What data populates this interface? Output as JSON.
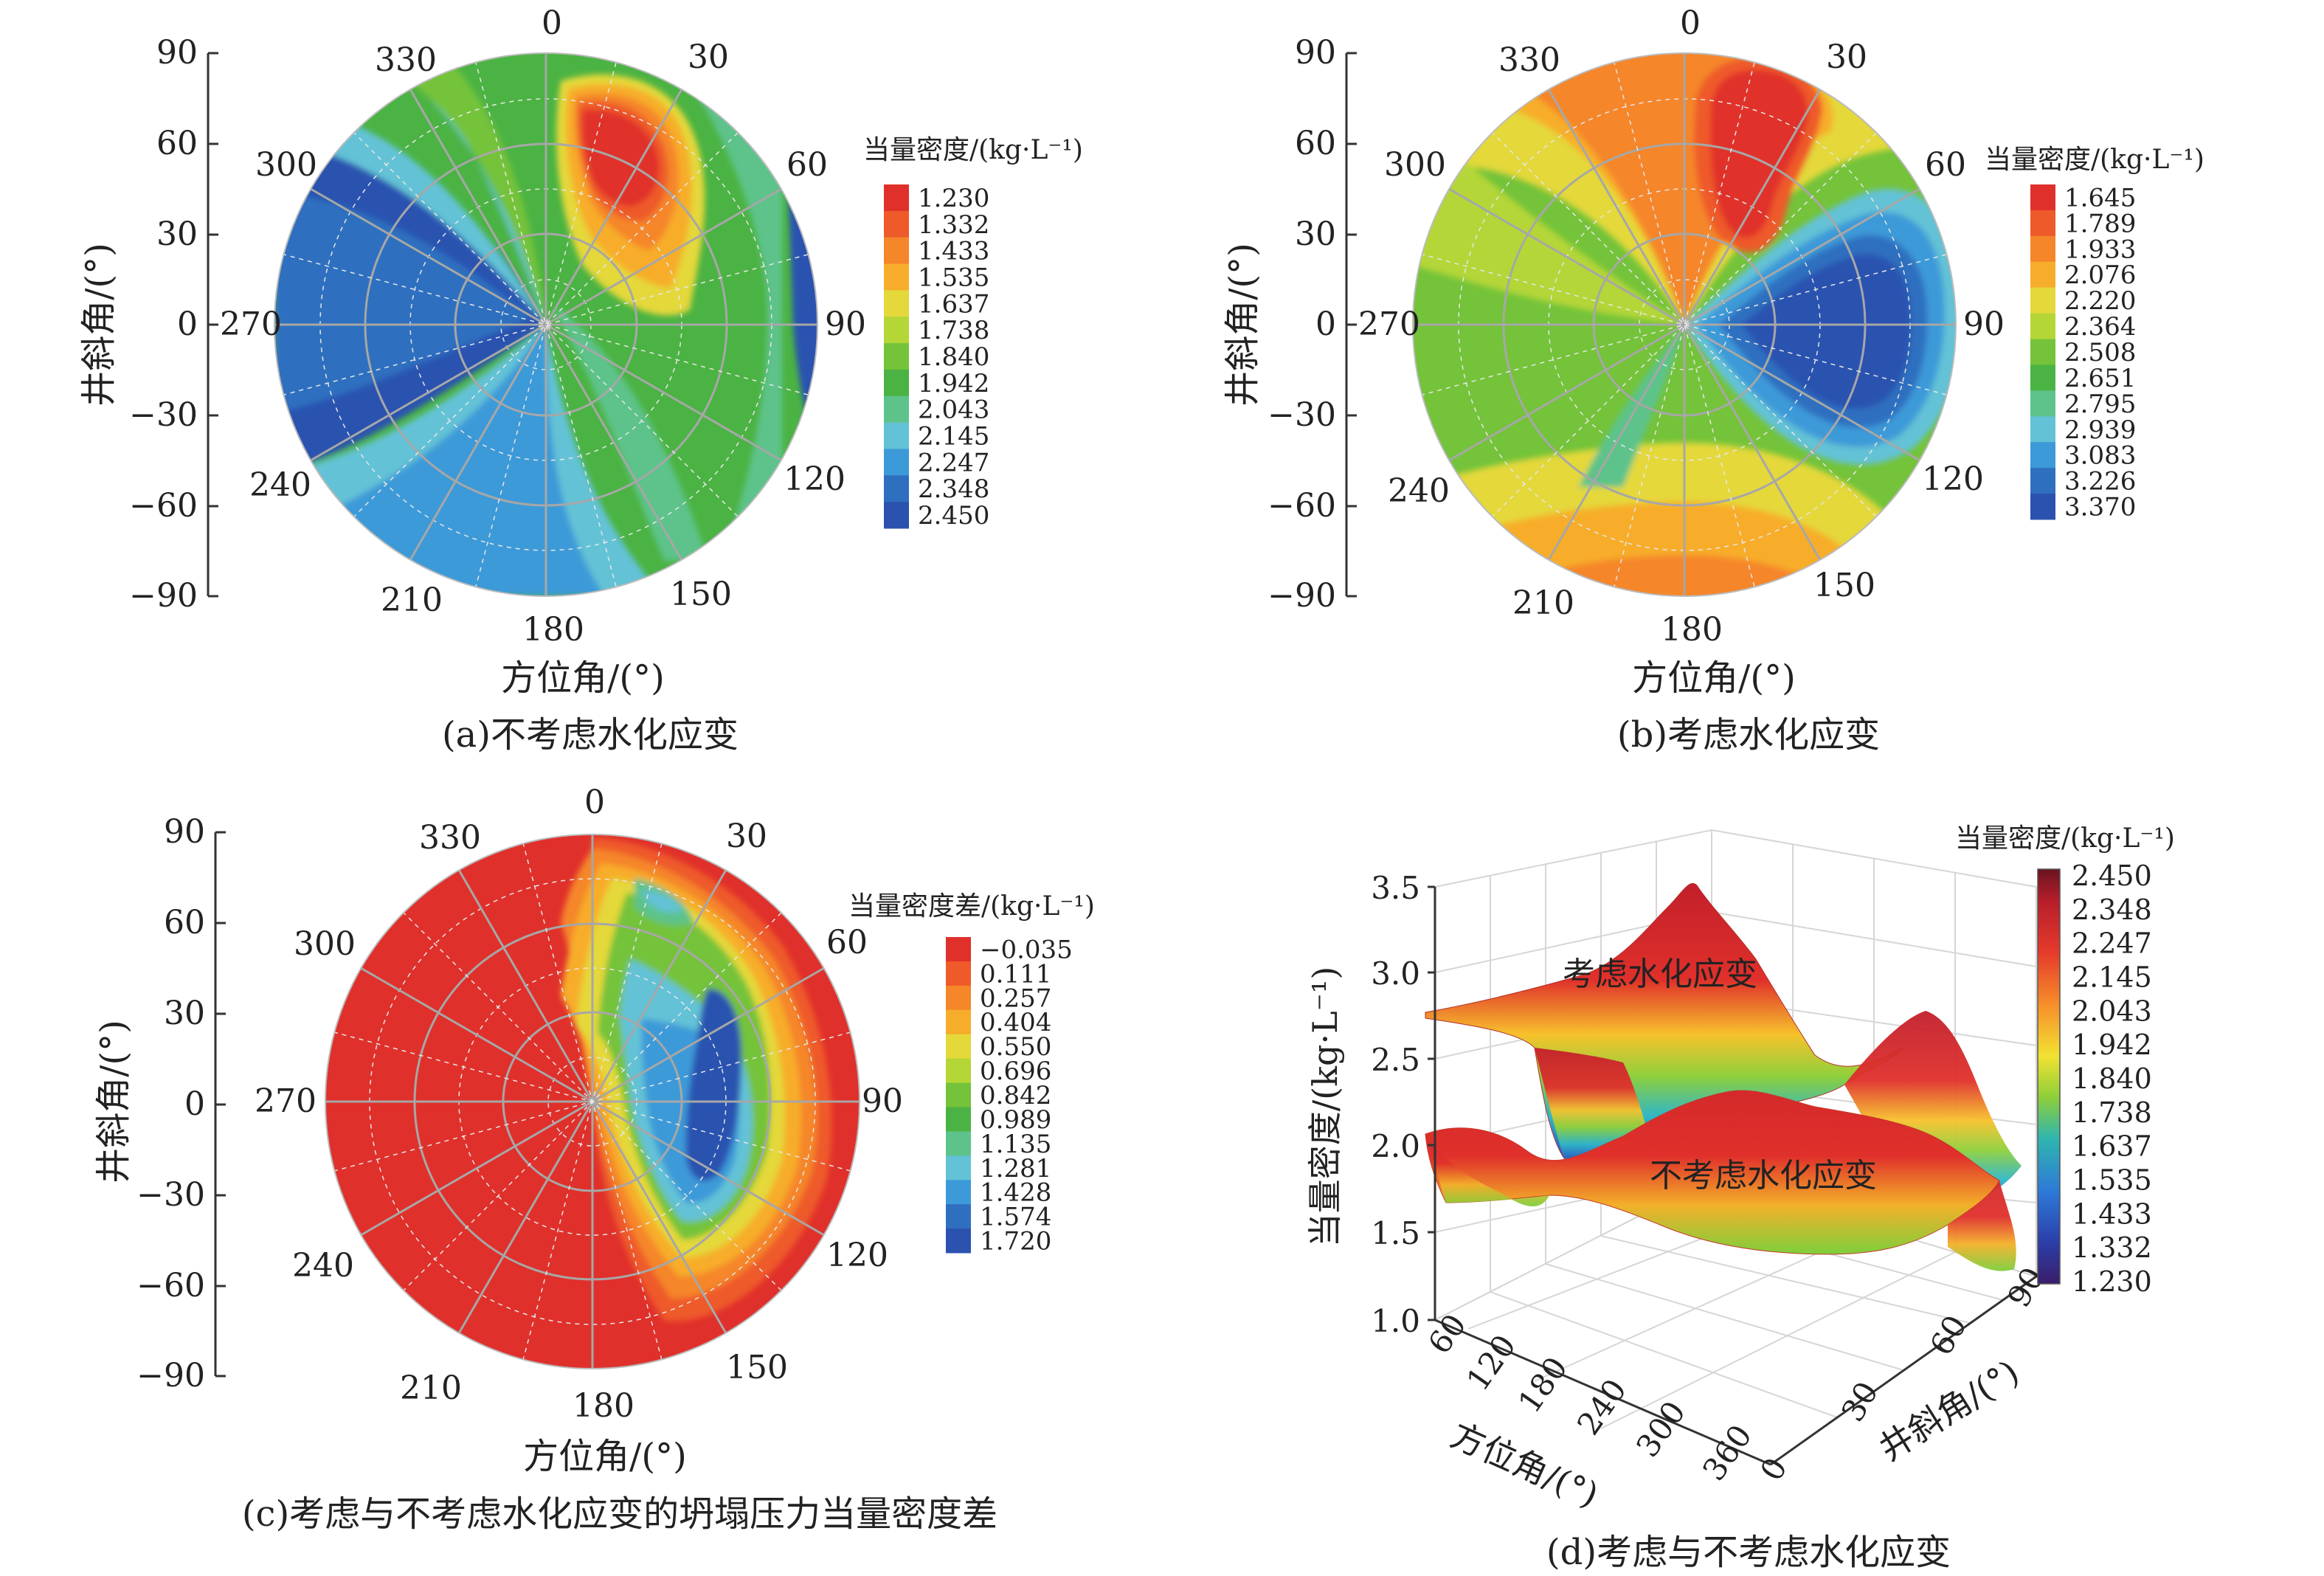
{
  "chart_data": [
    {
      "id": "a",
      "type": "polar-contour",
      "caption": "(a)不考虑水化应变",
      "xlabel": "方位角/(°)",
      "ylabel": "井斜角/(°)",
      "angle_ticks": [
        "0",
        "30",
        "60",
        "90",
        "120",
        "150",
        "180",
        "210",
        "240",
        "270",
        "300",
        "330"
      ],
      "y_ticks": [
        "90",
        "60",
        "30",
        "0",
        "−30",
        "−60",
        "−90"
      ],
      "ylim": [
        -90,
        90
      ],
      "legend_title": "当量密度/(kg·L⁻¹)",
      "legend_values": [
        "1.230",
        "1.332",
        "1.433",
        "1.535",
        "1.637",
        "1.738",
        "1.840",
        "1.942",
        "2.043",
        "2.145",
        "2.247",
        "2.348",
        "2.450"
      ],
      "legend_colors": [
        "#e0302b",
        "#ee5a2a",
        "#f5862a",
        "#f7ad2c",
        "#e4d83a",
        "#b4d637",
        "#74c33a",
        "#4bb343",
        "#5dc38a",
        "#63c2d6",
        "#3d9ad8",
        "#2f6fbf",
        "#2c52b0"
      ]
    },
    {
      "id": "b",
      "type": "polar-contour",
      "caption": "(b)考虑水化应变",
      "xlabel": "方位角/(°)",
      "ylabel": "井斜角/(°)",
      "angle_ticks": [
        "0",
        "30",
        "60",
        "90",
        "120",
        "150",
        "180",
        "210",
        "240",
        "270",
        "300",
        "330"
      ],
      "y_ticks": [
        "90",
        "60",
        "30",
        "0",
        "−30",
        "−60",
        "−90"
      ],
      "ylim": [
        -90,
        90
      ],
      "legend_title": "当量密度/(kg·L⁻¹)",
      "legend_values": [
        "1.645",
        "1.789",
        "1.933",
        "2.076",
        "2.220",
        "2.364",
        "2.508",
        "2.651",
        "2.795",
        "2.939",
        "3.083",
        "3.226",
        "3.370"
      ],
      "legend_colors": [
        "#e0302b",
        "#ee5a2a",
        "#f5862a",
        "#f7ad2c",
        "#e4d83a",
        "#b4d637",
        "#74c33a",
        "#4bb343",
        "#5dc38a",
        "#63c2d6",
        "#3d9ad8",
        "#2f6fbf",
        "#2c52b0"
      ]
    },
    {
      "id": "c",
      "type": "polar-contour",
      "caption": "(c)考虑与不考虑水化应变的坍塌压力当量密度差",
      "xlabel": "方位角/(°)",
      "ylabel": "井斜角/(°)",
      "angle_ticks": [
        "0",
        "30",
        "60",
        "90",
        "120",
        "150",
        "180",
        "210",
        "240",
        "270",
        "300",
        "330"
      ],
      "y_ticks": [
        "90",
        "60",
        "30",
        "0",
        "−30",
        "−60",
        "−90"
      ],
      "ylim": [
        -90,
        90
      ],
      "legend_title": "当量密度差/(kg·L⁻¹)",
      "legend_values": [
        "−0.035",
        "0.111",
        "0.257",
        "0.404",
        "0.550",
        "0.696",
        "0.842",
        "0.989",
        "1.135",
        "1.281",
        "1.428",
        "1.574",
        "1.720"
      ],
      "legend_colors": [
        "#e0302b",
        "#ee5a2a",
        "#f5862a",
        "#f7ad2c",
        "#e4d83a",
        "#b4d637",
        "#74c33a",
        "#4bb343",
        "#5dc38a",
        "#63c2d6",
        "#3d9ad8",
        "#2f6fbf",
        "#2c52b0"
      ]
    },
    {
      "id": "d",
      "type": "surface3d",
      "caption": "(d)考虑与不考虑水化应变",
      "zlabel": "当量密度/(kg·L⁻¹)",
      "xlabel": "方位角/(°)",
      "ylabel": "井斜角/(°)",
      "z_ticks": [
        "1.0",
        "1.5",
        "2.0",
        "2.5",
        "3.0",
        "3.5"
      ],
      "x_ticks": [
        "60",
        "120",
        "180",
        "240",
        "300",
        "360"
      ],
      "y_ticks": [
        "0",
        "30",
        "60",
        "90"
      ],
      "surface_labels": [
        "考虑水化应变",
        "不考虑水化应变"
      ],
      "legend_title": "当量密度/(kg·L⁻¹)",
      "legend_values": [
        "2.450",
        "2.348",
        "2.247",
        "2.145",
        "2.043",
        "1.942",
        "1.840",
        "1.738",
        "1.637",
        "1.535",
        "1.433",
        "1.332",
        "1.230"
      ]
    }
  ]
}
